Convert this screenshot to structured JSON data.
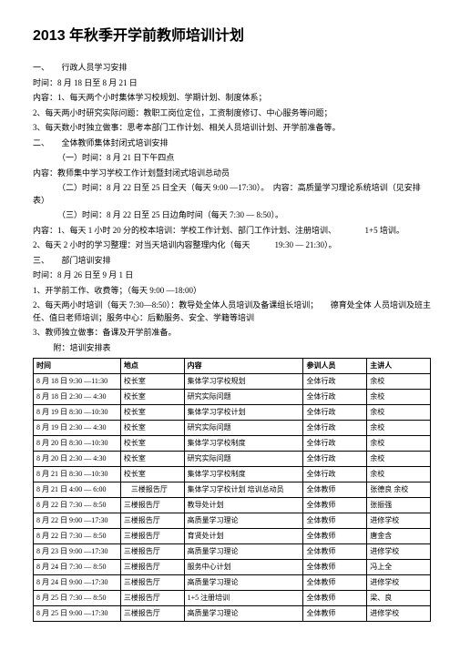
{
  "title": "2013 年秋季开学前教师培训计划",
  "p": [
    "一、　　行政人员学习安排",
    "时间：8 月 18 日至 8 月 21 日",
    "内容：1、每天两个小时集体学习校规划、学期计划、制度体系；",
    "2、每天两小时研究实际问题：教职工岗位定位，工资制度修订、中心服务等问题；",
    "3、每天数小时独立做事：思考本部门工作计划、相关人员培训计划、开学前准备等。",
    "二、　　全体教师集体封闭式培训安排",
    "（一）时间：8 月 21 日下午四点",
    "内容：教师集中学习学校工作计划暨封闭式培训总动员",
    "（二）时间：8 月 22 日至 25 日全天（每天 9:00 —17:30）。　内容：高质量学习理论系统培训（见安排表）",
    "（三）时间：8 月 22 日至 25 日边角时间（每天 7:30 — 8:50）。",
    "内容：1、每天 1 小时 20 分的校本培训：学校工作计划、部门工作计划、注册培训、　　　　1+5 培训。",
    "2、每天 2 小时的学习整理：对当天培训内容整理内化（每天　　　19:30 — 21:30）。",
    "三、　　部门培训安排",
    "时间：8 月 26 日至 9 月 1 日",
    "1、开学前工作、收费等；（每天 9:00 —18:00）",
    "2、每天两小时培训（每天 7:30—8:50）：教导处全体人员培训及备课组长培训；　　德育处全体 人员培训及班主任、值日老师培训；服务中心：后勤服务、安全、学籍等培训",
    "3、教师独立做事：备课及开学前准备。",
    "　附：培训安排表"
  ],
  "cols": [
    "时间",
    "地点",
    "内容",
    "参训人员",
    "主讲人"
  ],
  "rows": [
    [
      "8 月 18 日 9:30 —11:30",
      "校长室",
      "集体学习学校规划",
      "全体行政",
      "余校"
    ],
    [
      "8 月 18 日 2:30 — 4:30",
      "校长室",
      "研究实际问题",
      "全体行政",
      "余校"
    ],
    [
      "8 月 19 日 8:30 —10:30",
      "校长室",
      "集体学习学校计划",
      "全体行政",
      "余校"
    ],
    [
      "8 月 19 日 2:30 — 4:30",
      "校长室",
      "研究实际问题",
      "全体行政",
      "余校"
    ],
    [
      "8 月 20 日 8:30 —10:30",
      "校长室",
      "集体学习学校制度",
      "全体行政",
      "余校"
    ],
    [
      "8 月 20 日 2:30 — 4:30",
      "校长室",
      "研究实际问题",
      "全体行政",
      "余校"
    ],
    [
      "8 月 21 日 8:30 —10:30",
      "校长室",
      "集体学习学校制度",
      "全体行政",
      "余校"
    ],
    [
      "8 月 21 日 4:00 — 6:00",
      "　三楼报告厅",
      "集体学习学校计划 培训总动员",
      "全体教师",
      "张德良 余校"
    ],
    [
      "8 月 22 日 7:30 — 8:50",
      "三楼报告厅",
      "教导处计划",
      "全体教师",
      "张振强"
    ],
    [
      "8 月 22 日 9:00 —17:30",
      "三楼报告厅",
      "高质量学习理论",
      "全体教师",
      "进修学校"
    ],
    [
      "8 月 22 日 7:30 — 8:50",
      "三楼报告厅",
      "育贤处计划",
      "全体教师",
      "唐金含"
    ],
    [
      "8 月 23 日 9:00 —17:30",
      "三楼报告厅",
      "高质量学习理论",
      "全体教师",
      "进修学校"
    ],
    [
      "8 月 24 日 7:30 — 8:50",
      "三楼报告厅",
      "服务中心计划",
      "全体教师",
      "冯上全"
    ],
    [
      "8 月 24 日 9:00 —17:30",
      "三楼报告厅",
      "高质量学习理论",
      "全体教师",
      "进修学校"
    ],
    [
      "8 月 25 日 7:30 — 8:50",
      "三楼报告厅",
      "1+5 注册培训",
      "全体教师",
      "梁、良"
    ],
    [
      "8 月 25 日 9:00 —17:30",
      "三楼报告厅",
      "高质量学习理论",
      "全体教师",
      "进修学校"
    ]
  ]
}
